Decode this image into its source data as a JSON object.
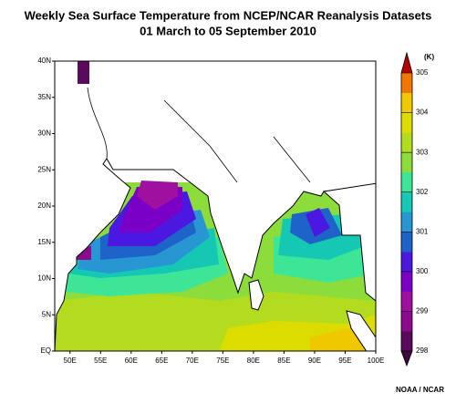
{
  "chart_data": {
    "type": "map",
    "title": "Weekly Sea Surface Temperature from NCEP/NCAR Reanalysis Datasets",
    "subtitle": "01 March to 05 September 2010",
    "xlim": [
      47.5,
      100
    ],
    "ylim": [
      0,
      40
    ],
    "xticks": [
      {
        "value": 50,
        "label": "50E"
      },
      {
        "value": 55,
        "label": "55E"
      },
      {
        "value": 60,
        "label": "60E"
      },
      {
        "value": 65,
        "label": "65E"
      },
      {
        "value": 70,
        "label": "70E"
      },
      {
        "value": 75,
        "label": "75E"
      },
      {
        "value": 80,
        "label": "80E"
      },
      {
        "value": 85,
        "label": "85E"
      },
      {
        "value": 90,
        "label": "90E"
      },
      {
        "value": 95,
        "label": "95E"
      },
      {
        "value": 100,
        "label": "100E"
      }
    ],
    "yticks": [
      {
        "value": 0,
        "label": "EQ"
      },
      {
        "value": 5,
        "label": "5N"
      },
      {
        "value": 10,
        "label": "10N"
      },
      {
        "value": 15,
        "label": "15N"
      },
      {
        "value": 20,
        "label": "20N"
      },
      {
        "value": 25,
        "label": "25N"
      },
      {
        "value": 30,
        "label": "30N"
      },
      {
        "value": 35,
        "label": "35N"
      },
      {
        "value": 40,
        "label": "40N"
      }
    ],
    "colorbar": {
      "label": "(K)",
      "clim": [
        298,
        305
      ],
      "ticks": [
        298,
        299,
        300,
        301,
        302,
        303,
        304,
        305
      ],
      "colors": [
        "#5a0a5a",
        "#8c0a8c",
        "#a010a0",
        "#7a00c8",
        "#4a18e0",
        "#1e64c8",
        "#2896d2",
        "#14c8b4",
        "#3ce696",
        "#8cdc3c",
        "#b4dc1e",
        "#dcdc00",
        "#f0c800",
        "#f07800"
      ],
      "under_color": "#3c0a3c",
      "over_color": "#b40000"
    },
    "credit": "NOAA / NCAR"
  }
}
